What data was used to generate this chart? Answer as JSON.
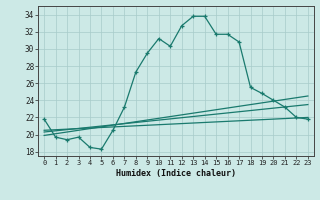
{
  "xlabel": "Humidex (Indice chaleur)",
  "xlim": [
    -0.5,
    23.5
  ],
  "ylim": [
    17.5,
    35.0
  ],
  "yticks": [
    18,
    20,
    22,
    24,
    26,
    28,
    30,
    32,
    34
  ],
  "xticks": [
    0,
    1,
    2,
    3,
    4,
    5,
    6,
    7,
    8,
    9,
    10,
    11,
    12,
    13,
    14,
    15,
    16,
    17,
    18,
    19,
    20,
    21,
    22,
    23
  ],
  "bg_color": "#cce9e6",
  "grid_color": "#a8ccca",
  "line_color": "#1a7a6e",
  "main_line": {
    "x": [
      0,
      1,
      2,
      3,
      4,
      5,
      6,
      7,
      8,
      9,
      10,
      11,
      12,
      13,
      14,
      15,
      16,
      17,
      18,
      19,
      20,
      21,
      22,
      23
    ],
    "y": [
      21.8,
      19.7,
      19.4,
      19.7,
      18.5,
      18.3,
      20.5,
      23.2,
      27.3,
      29.5,
      31.2,
      30.3,
      32.7,
      33.8,
      33.8,
      31.7,
      31.7,
      30.8,
      25.5,
      24.8,
      24.0,
      23.2,
      22.0,
      21.8
    ]
  },
  "flat_lines": [
    {
      "x0": 0,
      "y0": 19.9,
      "x1": 23,
      "y1": 24.5
    },
    {
      "x0": 0,
      "y0": 20.3,
      "x1": 23,
      "y1": 23.5
    },
    {
      "x0": 0,
      "y0": 20.5,
      "x1": 23,
      "y1": 22.0
    }
  ]
}
